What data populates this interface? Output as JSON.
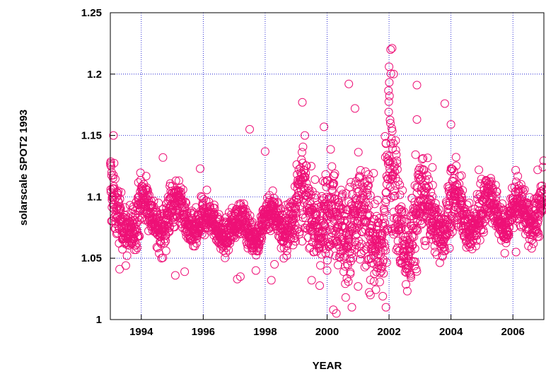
{
  "chart_data": {
    "type": "scatter",
    "title": "",
    "xlabel": "YEAR",
    "ylabel": "solarscale SPOT2 1993",
    "xlim": [
      1993.0,
      2007.0
    ],
    "ylim": [
      1.0,
      1.25
    ],
    "x_ticks": [
      1994,
      1996,
      1998,
      2000,
      2002,
      2004,
      2006
    ],
    "x_tick_labels": [
      "1994",
      "1996",
      "1998",
      "2000",
      "2002",
      "2004",
      "2006"
    ],
    "y_ticks": [
      1.0,
      1.05,
      1.1,
      1.15,
      1.2,
      1.25
    ],
    "y_tick_labels": [
      "1",
      "1.05",
      "1.1",
      "1.15",
      "1.2",
      "1.25"
    ],
    "grid": true,
    "marker": "open-circle",
    "marker_color": "#ee1177",
    "grid_color": "#0000cc",
    "series_envelope": {
      "x": [
        1993.0,
        1993.2,
        1993.5,
        1993.8,
        1994.0,
        1994.3,
        1994.6,
        1994.9,
        1995.2,
        1995.5,
        1995.8,
        1996.0,
        1996.3,
        1996.6,
        1996.9,
        1997.2,
        1997.5,
        1997.8,
        1998.0,
        1998.3,
        1998.6,
        1998.9,
        1999.2,
        1999.5,
        1999.8,
        2000.0,
        2000.3,
        2000.6,
        2000.9,
        2001.2,
        2001.5,
        2001.8,
        2002.0,
        2002.1,
        2002.3,
        2002.6,
        2002.9,
        2003.2,
        2003.5,
        2003.8,
        2004.0,
        2004.3,
        2004.6,
        2004.9,
        2005.2,
        2005.5,
        2005.8,
        2006.0,
        2006.3,
        2006.6,
        2006.9,
        2007.0
      ],
      "center": [
        1.11,
        1.08,
        1.07,
        1.085,
        1.1,
        1.08,
        1.075,
        1.095,
        1.09,
        1.075,
        1.08,
        1.085,
        1.075,
        1.07,
        1.08,
        1.075,
        1.07,
        1.075,
        1.085,
        1.08,
        1.075,
        1.09,
        1.1,
        1.085,
        1.075,
        1.095,
        1.08,
        1.07,
        1.085,
        1.075,
        1.065,
        1.06,
        1.15,
        1.13,
        1.07,
        1.055,
        1.1,
        1.09,
        1.075,
        1.08,
        1.1,
        1.085,
        1.075,
        1.09,
        1.095,
        1.085,
        1.08,
        1.095,
        1.085,
        1.08,
        1.1,
        1.1
      ],
      "spread": [
        0.03,
        0.02,
        0.015,
        0.02,
        0.02,
        0.015,
        0.015,
        0.02,
        0.015,
        0.012,
        0.015,
        0.015,
        0.012,
        0.012,
        0.012,
        0.012,
        0.012,
        0.012,
        0.015,
        0.015,
        0.015,
        0.025,
        0.03,
        0.025,
        0.03,
        0.035,
        0.03,
        0.035,
        0.04,
        0.04,
        0.035,
        0.03,
        0.06,
        0.05,
        0.04,
        0.03,
        0.04,
        0.03,
        0.02,
        0.02,
        0.025,
        0.02,
        0.015,
        0.02,
        0.02,
        0.015,
        0.015,
        0.02,
        0.015,
        0.015,
        0.02,
        0.02
      ]
    },
    "outliers": [
      {
        "x": 1993.1,
        "y": 1.15
      },
      {
        "x": 1993.3,
        "y": 1.041
      },
      {
        "x": 1993.5,
        "y": 1.044
      },
      {
        "x": 1994.7,
        "y": 1.132
      },
      {
        "x": 1994.5,
        "y": 1.059
      },
      {
        "x": 1994.8,
        "y": 1.056
      },
      {
        "x": 1995.1,
        "y": 1.036
      },
      {
        "x": 1995.4,
        "y": 1.039
      },
      {
        "x": 1995.9,
        "y": 1.123
      },
      {
        "x": 1997.1,
        "y": 1.033
      },
      {
        "x": 1997.2,
        "y": 1.035
      },
      {
        "x": 1997.5,
        "y": 1.155
      },
      {
        "x": 1997.7,
        "y": 1.04
      },
      {
        "x": 1998.0,
        "y": 1.137
      },
      {
        "x": 1998.2,
        "y": 1.032
      },
      {
        "x": 1998.3,
        "y": 1.045
      },
      {
        "x": 1998.6,
        "y": 1.05
      },
      {
        "x": 1999.2,
        "y": 1.177
      },
      {
        "x": 1999.5,
        "y": 1.032
      },
      {
        "x": 1999.9,
        "y": 1.157
      },
      {
        "x": 2000.0,
        "y": 1.04
      },
      {
        "x": 2000.2,
        "y": 1.008
      },
      {
        "x": 2000.3,
        "y": 1.005
      },
      {
        "x": 2000.6,
        "y": 1.018
      },
      {
        "x": 2000.7,
        "y": 1.192
      },
      {
        "x": 2000.8,
        "y": 1.01
      },
      {
        "x": 2000.9,
        "y": 1.172
      },
      {
        "x": 2001.0,
        "y": 1.027
      },
      {
        "x": 2001.4,
        "y": 1.02
      },
      {
        "x": 2001.9,
        "y": 1.01
      },
      {
        "x": 2002.0,
        "y": 1.206
      },
      {
        "x": 2002.05,
        "y": 1.22
      },
      {
        "x": 2002.1,
        "y": 1.221
      },
      {
        "x": 2002.15,
        "y": 1.2
      },
      {
        "x": 2002.9,
        "y": 1.191
      },
      {
        "x": 2002.9,
        "y": 1.163
      },
      {
        "x": 2003.4,
        "y": 1.124
      },
      {
        "x": 2003.8,
        "y": 1.176
      },
      {
        "x": 2004.0,
        "y": 1.159
      },
      {
        "x": 2004.9,
        "y": 1.122
      },
      {
        "x": 2006.1,
        "y": 1.055
      },
      {
        "x": 2006.5,
        "y": 1.06
      },
      {
        "x": 2006.8,
        "y": 1.122
      }
    ]
  }
}
